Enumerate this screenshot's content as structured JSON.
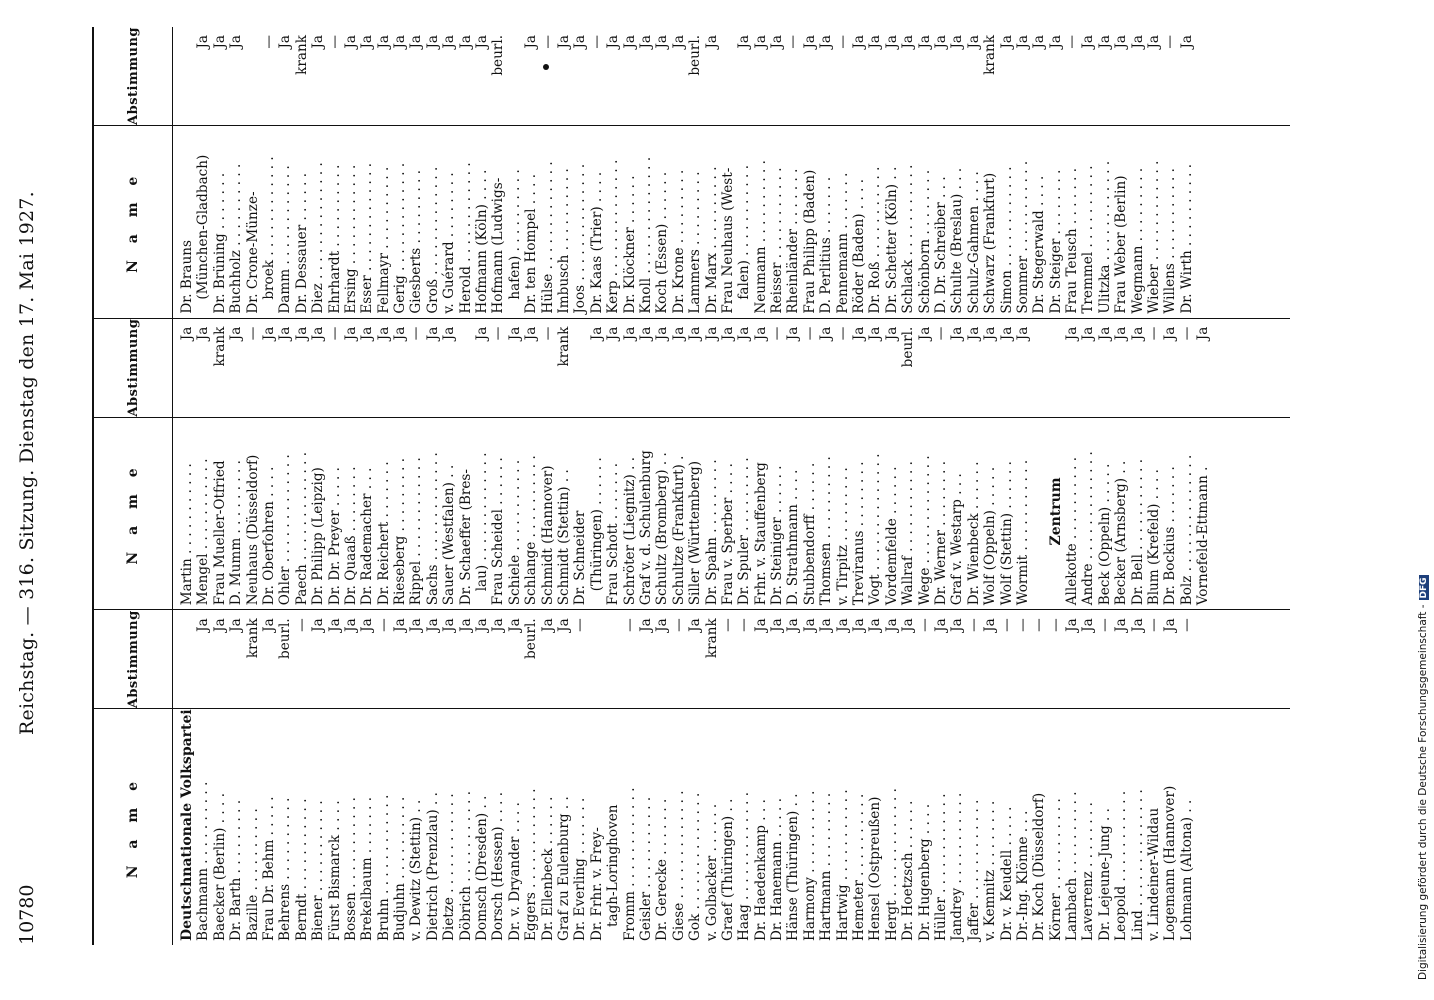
{
  "header": {
    "page_number": "10780",
    "running_title": "Reichstag. — 316. Sitzung. Dienstag den 17. Mai 1927."
  },
  "column_headers": {
    "name": "N a m e",
    "vote": "Abstimmung"
  },
  "blocks": [
    {
      "rows": [
        {
          "name": "Deutschnationale Volkspartei",
          "vote": "",
          "kind": "party"
        },
        {
          "name": "Bachmann . . . . . . . . . .",
          "vote": "Ja"
        },
        {
          "name": "Baecker (Berlin) . . . .",
          "vote": "Ja"
        },
        {
          "name": "Dr. Barth . . . . . . . . .",
          "vote": "Ja"
        },
        {
          "name": "Bazille . . . . . . . . . .",
          "vote": "krank"
        },
        {
          "name": "Frau Dr. Behm . . . . .",
          "vote": "Ja"
        },
        {
          "name": "Behrens . . . . . . . . . .",
          "vote": "beurl."
        },
        {
          "name": "Berndt . . . . . . . . . . .",
          "vote": "—"
        },
        {
          "name": "Biener . . . . . . . . . . .",
          "vote": "Ja"
        },
        {
          "name": "Fürst Bismarck . . . .",
          "vote": "Ja"
        },
        {
          "name": "Bossen . . . . . . . . . . .",
          "vote": "Ja"
        },
        {
          "name": "Brekelbaum . . . . . . .",
          "vote": "Ja"
        },
        {
          "name": "Bruhn . . . . . . . . . . . .",
          "vote": "—"
        },
        {
          "name": "Budjuhn . . . . . . . . . .",
          "vote": "Ja"
        },
        {
          "name": "v. Dewitz (Stettin) . .",
          "vote": "Ja"
        },
        {
          "name": "Dietrich (Prenzlau) . .",
          "vote": "Ja"
        },
        {
          "name": "Dietze . . . . . . . . . . . .",
          "vote": "Ja"
        },
        {
          "name": "Döbrich . . . . . . . . . . .",
          "vote": "Ja"
        },
        {
          "name": "Domsch (Dresden) . .",
          "vote": "Ja"
        },
        {
          "name": "Dorsch (Hessen) . . . .",
          "vote": "Ja"
        },
        {
          "name": "Dr. v. Dryander . . . .",
          "vote": "Ja"
        },
        {
          "name": "Eggers . . . . . . . . . . . .",
          "vote": "beurl."
        },
        {
          "name": "Dr. Ellenbeck . . . . . .",
          "vote": "Ja"
        },
        {
          "name": "Graf zu Eulenburg . .",
          "vote": "Ja"
        },
        {
          "name": "Dr. Everling . . . . . . .",
          "vote": "—"
        },
        {
          "name": "Dr. Frhr. v. Frey-",
          "vote": ""
        },
        {
          "name": "tagh-Loringhoven",
          "vote": "",
          "kind": "indent"
        },
        {
          "name": "Fromm . . . . . . . . . . . .",
          "vote": "—"
        },
        {
          "name": "Geisler . . . . . . . . . . .",
          "vote": "Ja"
        },
        {
          "name": "Dr. Gerecke . . . . . . .",
          "vote": "Ja"
        },
        {
          "name": "Giese . . . . . . . . . . . . .",
          "vote": "—"
        },
        {
          "name": "Gok . . . . . . . . . . . . . .",
          "vote": "Ja"
        },
        {
          "name": "v. Golbacker . . . . . .",
          "vote": "krank"
        },
        {
          "name": "Graef (Thüringen) . .",
          "vote": "—"
        },
        {
          "name": "Haag . . . . . . . . . . . . .",
          "vote": "—"
        },
        {
          "name": "Dr. Haedenkamp . . .",
          "vote": "Ja"
        },
        {
          "name": "Dr. Hanemann . . . . .",
          "vote": "Ja"
        },
        {
          "name": "Hänse (Thüringen) . .",
          "vote": "Ja"
        },
        {
          "name": "Harmony . . . . . . . . . .",
          "vote": "Ja"
        },
        {
          "name": "Hartmann . . . . . . . . .",
          "vote": "Ja"
        },
        {
          "name": "Hartwig . . . . . . . . . . .",
          "vote": "Ja"
        },
        {
          "name": "Hemeter . . . . . . . . . .",
          "vote": "Ja"
        },
        {
          "name": "Hensel (Ostpreußen)",
          "vote": "Ja"
        },
        {
          "name": "Hergt . . . . . . . . . . . . .",
          "vote": "Ja"
        },
        {
          "name": "Dr. Hoetzsch . . . . . .",
          "vote": "Ja"
        },
        {
          "name": "Dr. Hugenberg . . . .",
          "vote": "—"
        },
        {
          "name": "Hüller . . . . . . . . . . . .",
          "vote": "Ja"
        },
        {
          "name": "Jandrey . . . . . . . . . . .",
          "vote": "Ja"
        },
        {
          "name": "Jaffer . . . . . . . . . . . .",
          "vote": "—"
        },
        {
          "name": "v. Kemnitz . . . . . . . .",
          "vote": "Ja"
        },
        {
          "name": "Dr. v. Keudell . . . . .",
          "vote": "—"
        },
        {
          "name": "Dr.-Ing. Klönne . . .",
          "vote": "—"
        },
        {
          "name": "Dr. Koch (Düsseldorf)",
          "vote": "—"
        },
        {
          "name": "Körner . . . . . . . . . . .",
          "vote": "—"
        },
        {
          "name": "Lambach . . . . . . . . . .",
          "vote": "Ja"
        },
        {
          "name": "Laverrenz . . . . . . . .",
          "vote": "Ja"
        },
        {
          "name": "Dr. Lejeune-Jung . .",
          "vote": "—"
        },
        {
          "name": "Leopold . . . . . . . . . . .",
          "vote": "Ja"
        },
        {
          "name": "Lind . . . . . . . . . . . . . .",
          "vote": "Ja"
        },
        {
          "name": "v. Lindeiner-Wildau",
          "vote": "—"
        },
        {
          "name": "Logemann (Hannover)",
          "vote": "Ja"
        },
        {
          "name": "Lohmann (Altona) . .",
          "vote": "—"
        }
      ]
    },
    {
      "rows": [
        {
          "name": "Martin . . . . . . . . . . .",
          "vote": "Ja"
        },
        {
          "name": "Mengel . . . . . . . . . . .",
          "vote": "Ja"
        },
        {
          "name": "Frau Mueller-Otfried",
          "vote": "krank"
        },
        {
          "name": "D. Mumm . . . . . . . . .",
          "vote": "Ja"
        },
        {
          "name": "Neuhaus (Düsseldorf)",
          "vote": "—"
        },
        {
          "name": "Dr. Oberfohren . . . .",
          "vote": "Ja"
        },
        {
          "name": "Ohler . . . . . . . . . . . . .",
          "vote": "Ja"
        },
        {
          "name": "Paech . . . . . . . . . . . . .",
          "vote": "Ja"
        },
        {
          "name": "Dr. Philipp (Leipzig)",
          "vote": "Ja"
        },
        {
          "name": "Dr. Dr. Preyer . . . . .",
          "vote": "—"
        },
        {
          "name": "Dr. Quaaß . . . . . . . .",
          "vote": "Ja"
        },
        {
          "name": "Dr. Rademacher . . .",
          "vote": "Ja"
        },
        {
          "name": "Dr. Reichert . . . . . . .",
          "vote": "Ja"
        },
        {
          "name": "Rieseberg . . . . . . . . .",
          "vote": "Ja"
        },
        {
          "name": "Rippel . . . . . . . . . . . .",
          "vote": "—"
        },
        {
          "name": "Sachs . . . . . . . . . . . . .",
          "vote": "Ja"
        },
        {
          "name": "Sauer (Westfalen) . .",
          "vote": "Ja"
        },
        {
          "name": "Dr. Schaeffer (Bres-",
          "vote": ""
        },
        {
          "name": "lau) . . . . . . . . . . . . .",
          "vote": "Ja",
          "kind": "indent"
        },
        {
          "name": "Frau Scheidel . . . . . .",
          "vote": "—"
        },
        {
          "name": "Schiele . . . . . . . . . . .",
          "vote": "Ja"
        },
        {
          "name": "Schlange . . . . . . . . . .",
          "vote": "Ja"
        },
        {
          "name": "Schmidt (Hannover)",
          "vote": "—"
        },
        {
          "name": "Schmidt (Stettin) . .",
          "vote": "krank"
        },
        {
          "name": "Dr. Schneider",
          "vote": ""
        },
        {
          "name": "(Thüringen) . . . . . .",
          "vote": "Ja",
          "kind": "indent"
        },
        {
          "name": "Frau Schott . . . . . . .",
          "vote": "Ja"
        },
        {
          "name": "Schröter (Liegnitz) . .",
          "vote": "Ja"
        },
        {
          "name": "Graf v. d. Schulenburg",
          "vote": "Ja"
        },
        {
          "name": "Schultz (Bromberg) . .",
          "vote": "Ja"
        },
        {
          "name": "Schultze (Frankfurt) .",
          "vote": "Ja"
        },
        {
          "name": "Siller (Württemberg)",
          "vote": "Ja"
        },
        {
          "name": "Dr. Spahn . . . . . . . . .",
          "vote": "Ja"
        },
        {
          "name": "Frau v. Sperber . . . .",
          "vote": "Ja"
        },
        {
          "name": "Dr. Spuler . . . . . . . . .",
          "vote": "Ja"
        },
        {
          "name": "Frhr. v. Stauffenberg",
          "vote": "Ja"
        },
        {
          "name": "Dr. Steiniger . . . . . .",
          "vote": "—"
        },
        {
          "name": "D. Strathmann . . . .",
          "vote": "Ja"
        },
        {
          "name": "Stubbendorff . . . . . .",
          "vote": "—"
        },
        {
          "name": "Thomsen . . . . . . . . . .",
          "vote": "Ja"
        },
        {
          "name": "v. Tirpitz . . . . . . . . .",
          "vote": "—"
        },
        {
          "name": "Treviranus . . . . . . . .",
          "vote": "Ja"
        },
        {
          "name": "Vogt . . . . . . . . . . . . . .",
          "vote": "Ja"
        },
        {
          "name": "Vordemfelde . . . . . .",
          "vote": "Ja"
        },
        {
          "name": "Wallraf . . . . . . . . . . .",
          "vote": "beurl."
        },
        {
          "name": "Wege . . . . . . . . . . . . .",
          "vote": "Ja"
        },
        {
          "name": "Dr. Werner . . . . . . . .",
          "vote": "—"
        },
        {
          "name": "Graf v. Westarp . . .",
          "vote": "Ja"
        },
        {
          "name": "Dr. Wienbeck . . . . . .",
          "vote": "Ja"
        },
        {
          "name": "Wolf (Oppeln) . . . . .",
          "vote": "Ja"
        },
        {
          "name": "Wolf (Stettin) . . . . . .",
          "vote": "Ja"
        },
        {
          "name": "Wormit . . . . . . . . . . .",
          "vote": "Ja"
        },
        {
          "name": "",
          "vote": "",
          "kind": "blank"
        },
        {
          "name": "Zentrum",
          "vote": "",
          "kind": "party"
        },
        {
          "name": "Allekotte . . . . . . . . . .",
          "vote": "Ja"
        },
        {
          "name": "Andre . . . . . . . . . . . . .",
          "vote": "Ja"
        },
        {
          "name": "Beck (Oppeln) . . . . .",
          "vote": "Ja"
        },
        {
          "name": "Becker (Arnsberg) . .",
          "vote": "Ja"
        },
        {
          "name": "Dr. Bell . . . . . . . . . . .",
          "vote": "Ja"
        },
        {
          "name": "Blum (Krefeld) . . . .",
          "vote": "—"
        },
        {
          "name": "Dr. Bockius . . . . . . .",
          "vote": "Ja"
        },
        {
          "name": "Bolz . . . . . . . . . . . . . .",
          "vote": "—"
        },
        {
          "name": "Vornefeld-Ettmann .",
          "vote": "Ja"
        }
      ]
    },
    {
      "rows": [
        {
          "name": "Dr. Brauns",
          "vote": ""
        },
        {
          "name": "(München-Gladbach)",
          "vote": "Ja",
          "kind": "indent"
        },
        {
          "name": "Dr. Brüning . . . . . . .",
          "vote": "Ja"
        },
        {
          "name": "Buchholz . . . . . . . . . .",
          "vote": "Ja"
        },
        {
          "name": "Dr. Crone-Münze-",
          "vote": ""
        },
        {
          "name": "broek . . . . . . . . . . . .",
          "vote": "—",
          "kind": "indent"
        },
        {
          "name": "Damm . . . . . . . . . . . .",
          "vote": "Ja"
        },
        {
          "name": "Dr. Dessauer . . . . . .",
          "vote": "krank"
        },
        {
          "name": "Diez . . . . . . . . . . . . . .",
          "vote": "Ja"
        },
        {
          "name": "Ehrhardt . . . . . . . . . .",
          "vote": "—"
        },
        {
          "name": "Ersing . . . . . . . . . . . .",
          "vote": "Ja"
        },
        {
          "name": "Esser . . . . . . . . . . . . .",
          "vote": "Ja"
        },
        {
          "name": "Fellmayr . . . . . . . . . .",
          "vote": "Ja"
        },
        {
          "name": "Gerig . . . . . . . . . . . . .",
          "vote": "Ja"
        },
        {
          "name": "Giesberts . . . . . . . . .",
          "vote": "Ja"
        },
        {
          "name": "Groß . . . . . . . . . . . . .",
          "vote": "Ja"
        },
        {
          "name": "v. Guérard . . . . . . . .",
          "vote": "Ja"
        },
        {
          "name": "Herold . . . . . . . . . . . .",
          "vote": "Ja"
        },
        {
          "name": "Hofmann (Köln) . . . .",
          "vote": "Ja"
        },
        {
          "name": "Hofmann (Ludwigs-",
          "vote": "beurl."
        },
        {
          "name": "hafen) . . . . . . . . . .",
          "vote": "",
          "kind": "indent"
        },
        {
          "name": "Dr. ten Hompel . . . .",
          "vote": "Ja"
        },
        {
          "name": "Hülse . . . . . . . . . . . . .",
          "vote": "—"
        },
        {
          "name": "Imbusch . . . . . . . . . .",
          "vote": "Ja"
        },
        {
          "name": "Joos . . . . . . . . . . . . . .",
          "vote": "Ja"
        },
        {
          "name": "Dr. Kaas (Trier) . . . .",
          "vote": "—"
        },
        {
          "name": "Kerp . . . . . . . . . . . . . .",
          "vote": "Ja"
        },
        {
          "name": "Dr. Klöckner . . . . . .",
          "vote": "Ja"
        },
        {
          "name": "Knoll . . . . . . . . . . . . . .",
          "vote": "Ja"
        },
        {
          "name": "Koch (Essen) . . . . . .",
          "vote": "Ja"
        },
        {
          "name": "Dr. Krone . . . . . . . . .",
          "vote": "Ja"
        },
        {
          "name": "Lammers . . . . . . . . .",
          "vote": "beurl."
        },
        {
          "name": "Dr. Marx . . . . . . . . . .",
          "vote": "Ja"
        },
        {
          "name": "Frau Neuhaus (West-",
          "vote": ""
        },
        {
          "name": "falen) . . . . . . . . . . .",
          "vote": "Ja",
          "kind": "indent"
        },
        {
          "name": "Neumann . . . . . . . . . .",
          "vote": "Ja"
        },
        {
          "name": "Reisser . . . . . . . . . . .",
          "vote": "Ja"
        },
        {
          "name": "Rheinländer . . . . . . .",
          "vote": "—"
        },
        {
          "name": "Frau Philipp (Baden)",
          "vote": "Ja"
        },
        {
          "name": "D. Perlitius . . . . . . .",
          "vote": "Ja"
        },
        {
          "name": "Pennemann . . . . . . .",
          "vote": "—"
        },
        {
          "name": "Röder (Baden) . . . .",
          "vote": "Ja"
        },
        {
          "name": "Dr. Roß . . . . . . . . . . .",
          "vote": "Ja"
        },
        {
          "name": "Dr. Schetter (Köln) . .",
          "vote": "Ja"
        },
        {
          "name": "Schlack . . . . . . . . . . .",
          "vote": "Ja"
        },
        {
          "name": "Schönborn . . . . . . . .",
          "vote": "Ja"
        },
        {
          "name": "D. Dr. Schreiber . . .",
          "vote": "Ja"
        },
        {
          "name": "Schulte (Breslau) . . .",
          "vote": "Ja"
        },
        {
          "name": "Schulz-Gahmen . . . .",
          "vote": "Ja"
        },
        {
          "name": "Schwarz (Frankfurt)",
          "vote": "krank"
        },
        {
          "name": "Simon . . . . . . . . . . . .",
          "vote": "Ja"
        },
        {
          "name": "Sommer . . . . . . . . . . .",
          "vote": "Ja"
        },
        {
          "name": "Dr. Stegerwald . . . .",
          "vote": "Ja"
        },
        {
          "name": "Dr. Steiger . . . . . . . .",
          "vote": "Ja"
        },
        {
          "name": "Frau Teusch . . . . . . .",
          "vote": "—"
        },
        {
          "name": "Tremmel . . . . . . . . . .",
          "vote": "Ja"
        },
        {
          "name": "Ulitzka . . . . . . . . . . . .",
          "vote": "Ja"
        },
        {
          "name": "Frau Weber (Berlin)",
          "vote": "Ja"
        },
        {
          "name": "Wegmann . . . . . . . . .",
          "vote": "Ja"
        },
        {
          "name": "Wieber . . . . . . . . . . . .",
          "vote": "Ja"
        },
        {
          "name": "Willens . . . . . . . . . . .",
          "vote": "—"
        },
        {
          "name": "Dr. Wirth . . . . . . . . . .",
          "vote": "Ja"
        }
      ]
    }
  ],
  "footer_note": "Digitalisierung gefördert durch die Deutsche Forschungsgemeinschaft -",
  "logo_text": "DFG"
}
